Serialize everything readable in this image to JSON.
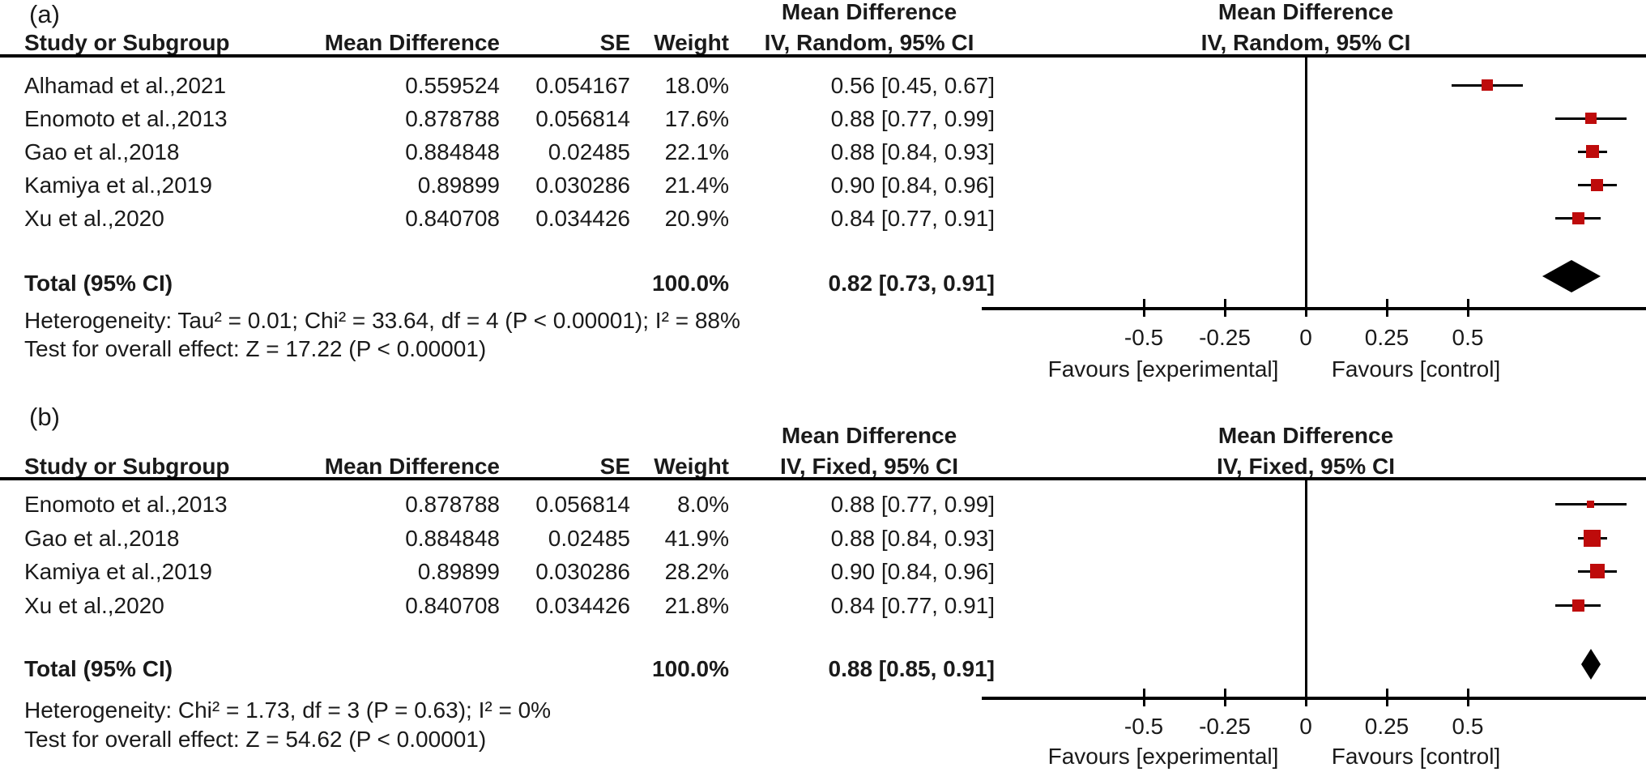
{
  "chart_data": {
    "type": "forest",
    "marker_color": "#be0b0b",
    "line_color": "#000000",
    "text_color": "#1a1a1a",
    "xlim": [
      -1.0,
      1.05
    ],
    "panels": [
      {
        "label": "(a)",
        "effect_title": "Mean Difference",
        "method": "IV, Random, 95% CI",
        "columns": {
          "study": "Study or Subgroup",
          "md": "Mean Difference",
          "se": "SE",
          "weight": "Weight"
        },
        "studies": [
          {
            "name": "Alhamad et al.,2021",
            "md": "0.559524",
            "se": "0.054167",
            "weight": "18.0%",
            "weight_pct": 18.0,
            "ci": "0.56 [0.45, 0.67]",
            "est": 0.559524,
            "lo": 0.45,
            "hi": 0.67
          },
          {
            "name": "Enomoto et al.,2013",
            "md": "0.878788",
            "se": "0.056814",
            "weight": "17.6%",
            "weight_pct": 17.6,
            "ci": "0.88 [0.77, 0.99]",
            "est": 0.878788,
            "lo": 0.77,
            "hi": 0.99
          },
          {
            "name": "Gao et al.,2018",
            "md": "0.884848",
            "se": "0.02485",
            "weight": "22.1%",
            "weight_pct": 22.1,
            "ci": "0.88 [0.84, 0.93]",
            "est": 0.884848,
            "lo": 0.84,
            "hi": 0.93
          },
          {
            "name": "Kamiya et al.,2019",
            "md": "0.89899",
            "se": "0.030286",
            "weight": "21.4%",
            "weight_pct": 21.4,
            "ci": "0.90 [0.84, 0.96]",
            "est": 0.89899,
            "lo": 0.84,
            "hi": 0.96
          },
          {
            "name": "Xu et al.,2020",
            "md": "0.840708",
            "se": "0.034426",
            "weight": "20.9%",
            "weight_pct": 20.9,
            "ci": "0.84 [0.77, 0.91]",
            "est": 0.840708,
            "lo": 0.77,
            "hi": 0.91
          }
        ],
        "total": {
          "label": "Total (95% CI)",
          "weight": "100.0%",
          "ci": "0.82 [0.73, 0.91]",
          "est": 0.82,
          "lo": 0.73,
          "hi": 0.91
        },
        "heterogeneity": "Heterogeneity: Tau² = 0.01; Chi² = 33.64, df = 4 (P < 0.00001); I² = 88%",
        "overall_effect": "Test for overall effect: Z = 17.22 (P < 0.00001)",
        "axis": {
          "tick_values": [
            -0.5,
            -0.25,
            0,
            0.25,
            0.5
          ],
          "tick_labels": [
            "-0.5",
            "-0.25",
            "0",
            "0.25",
            "0.5"
          ],
          "favours_left": "Favours [experimental]",
          "favours_right": "Favours [control]"
        }
      },
      {
        "label": "(b)",
        "effect_title": "Mean Difference",
        "method": "IV, Fixed, 95% CI",
        "columns": {
          "study": "Study or Subgroup",
          "md": "Mean Difference",
          "se": "SE",
          "weight": "Weight"
        },
        "studies": [
          {
            "name": "Enomoto et al.,2013",
            "md": "0.878788",
            "se": "0.056814",
            "weight": "8.0%",
            "weight_pct": 8.0,
            "ci": "0.88 [0.77, 0.99]",
            "est": 0.878788,
            "lo": 0.77,
            "hi": 0.99
          },
          {
            "name": "Gao et al.,2018",
            "md": "0.884848",
            "se": "0.02485",
            "weight": "41.9%",
            "weight_pct": 41.9,
            "ci": "0.88 [0.84, 0.93]",
            "est": 0.884848,
            "lo": 0.84,
            "hi": 0.93
          },
          {
            "name": "Kamiya et al.,2019",
            "md": "0.89899",
            "se": "0.030286",
            "weight": "28.2%",
            "weight_pct": 28.2,
            "ci": "0.90 [0.84, 0.96]",
            "est": 0.89899,
            "lo": 0.84,
            "hi": 0.96
          },
          {
            "name": "Xu et al.,2020",
            "md": "0.840708",
            "se": "0.034426",
            "weight": "21.8%",
            "weight_pct": 21.8,
            "ci": "0.84 [0.77, 0.91]",
            "est": 0.840708,
            "lo": 0.77,
            "hi": 0.91
          }
        ],
        "total": {
          "label": "Total (95% CI)",
          "weight": "100.0%",
          "ci": "0.88 [0.85, 0.91]",
          "est": 0.88,
          "lo": 0.85,
          "hi": 0.91
        },
        "heterogeneity": "Heterogeneity: Chi² = 1.73, df = 3 (P = 0.63); I² = 0%",
        "overall_effect": "Test for overall effect: Z = 54.62 (P < 0.00001)",
        "axis": {
          "tick_values": [
            -0.5,
            -0.25,
            0,
            0.25,
            0.5
          ],
          "tick_labels": [
            "-0.5",
            "-0.25",
            "0",
            "0.25",
            "0.5"
          ],
          "favours_left": "Favours [experimental]",
          "favours_right": "Favours [control]"
        }
      }
    ]
  }
}
